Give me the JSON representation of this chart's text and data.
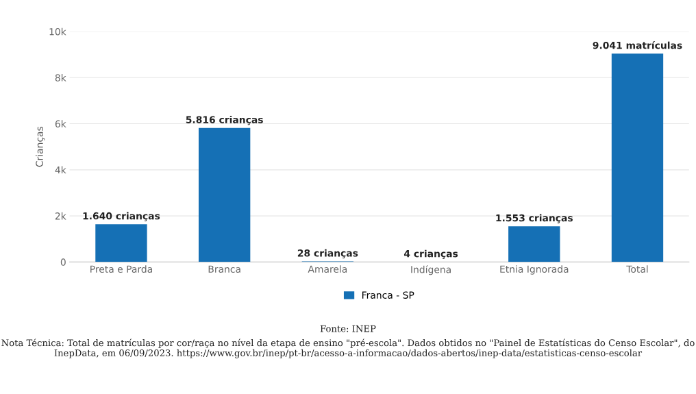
{
  "chart_data": {
    "type": "bar",
    "ylabel": "Crianças",
    "categories": [
      "Preta e Parda",
      "Branca",
      "Amarela",
      "Indígena",
      "Etnia Ignorada",
      "Total"
    ],
    "series": [
      {
        "name": "Franca - SP",
        "color": "#1570b5",
        "values": [
          1640,
          5816,
          28,
          4,
          1553,
          9041
        ],
        "value_labels": [
          "1.640 crianças",
          "5.816 crianças",
          "28 crianças",
          "4 crianças",
          "1.553 crianças",
          "9.041 matrículas"
        ]
      }
    ],
    "ylim": [
      0,
      10000
    ],
    "yticks": [
      {
        "value": 0,
        "label": "0"
      },
      {
        "value": 2000,
        "label": "2k"
      },
      {
        "value": 4000,
        "label": "4k"
      },
      {
        "value": 6000,
        "label": "6k"
      },
      {
        "value": 8000,
        "label": "8k"
      },
      {
        "value": 10000,
        "label": "10k"
      }
    ],
    "grid": "y",
    "legend": "bottom",
    "annotations": [
      "Fonte: INEP",
      "Nota Técnica: Total de matrículas por cor/raça no nível da etapa de ensino \"pré-escola\". Dados obtidos no \"Painel de Estatísticas do Censo Escolar\", do InepData, em 06/09/2023. https://www.gov.br/inep/pt-br/acesso-a-informacao/dados-abertos/inep-data/estatisticas-censo-escolar"
    ]
  }
}
